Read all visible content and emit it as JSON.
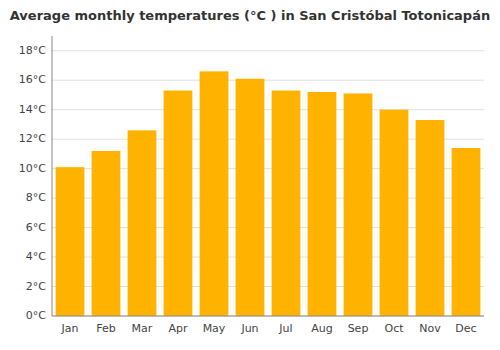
{
  "chart_data": {
    "type": "bar",
    "title": "Average monthly temperatures (°C ) in San Cristóbal Totonicapán",
    "categories": [
      "Jan",
      "Feb",
      "Mar",
      "Apr",
      "May",
      "Jun",
      "Jul",
      "Aug",
      "Sep",
      "Oct",
      "Nov",
      "Dec"
    ],
    "values": [
      10.1,
      11.2,
      12.6,
      15.3,
      16.6,
      16.1,
      15.3,
      15.2,
      15.1,
      14.0,
      13.3,
      11.4
    ],
    "color": "#FFB300",
    "ylim": [
      0,
      19
    ],
    "yticks": [
      {
        "value": 0,
        "label": "0°C"
      },
      {
        "value": 2,
        "label": "2°C"
      },
      {
        "value": 4,
        "label": "4°C"
      },
      {
        "value": 6,
        "label": "6°C"
      },
      {
        "value": 8,
        "label": "8°C"
      },
      {
        "value": 10,
        "label": "10°C"
      },
      {
        "value": 12,
        "label": "12°C"
      },
      {
        "value": 14,
        "label": "14°C"
      },
      {
        "value": 16,
        "label": "16°C"
      },
      {
        "value": 18,
        "label": "18°C"
      }
    ],
    "grid": true
  }
}
